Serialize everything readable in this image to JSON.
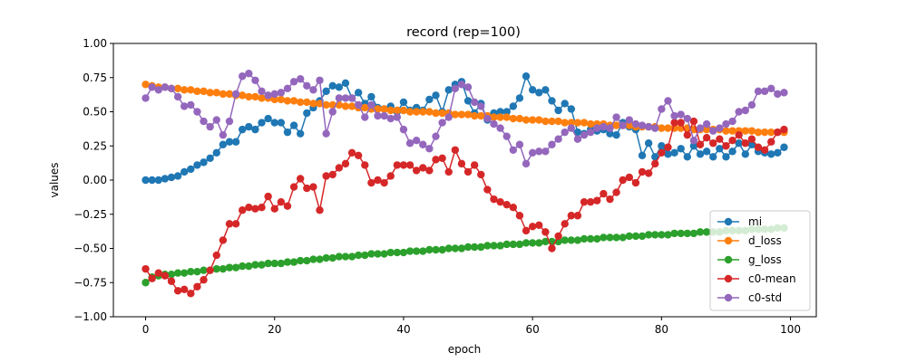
{
  "chart_data": {
    "type": "line",
    "title": "record (rep=100)",
    "xlabel": "epoch",
    "ylabel": "values",
    "xlim": [
      -5,
      104
    ],
    "ylim": [
      -1.0,
      1.0
    ],
    "xticks": [
      0,
      20,
      40,
      60,
      80,
      100
    ],
    "yticks": [
      -1.0,
      -0.75,
      -0.5,
      -0.25,
      0.0,
      0.25,
      0.5,
      0.75,
      1.0
    ],
    "xtick_labels": [
      "0",
      "20",
      "40",
      "60",
      "80",
      "100"
    ],
    "ytick_labels": [
      "−1.00",
      "−0.75",
      "−0.50",
      "−0.25",
      "0.00",
      "0.25",
      "0.50",
      "0.75",
      "1.00"
    ],
    "grid": false,
    "legend_position": "lower right",
    "markers": true,
    "x": [
      0,
      1,
      2,
      3,
      4,
      5,
      6,
      7,
      8,
      9,
      10,
      11,
      12,
      13,
      14,
      15,
      16,
      17,
      18,
      19,
      20,
      21,
      22,
      23,
      24,
      25,
      26,
      27,
      28,
      29,
      30,
      31,
      32,
      33,
      34,
      35,
      36,
      37,
      38,
      39,
      40,
      41,
      42,
      43,
      44,
      45,
      46,
      47,
      48,
      49,
      50,
      51,
      52,
      53,
      54,
      55,
      56,
      57,
      58,
      59,
      60,
      61,
      62,
      63,
      64,
      65,
      66,
      67,
      68,
      69,
      70,
      71,
      72,
      73,
      74,
      75,
      76,
      77,
      78,
      79,
      80,
      81,
      82,
      83,
      84,
      85,
      86,
      87,
      88,
      89,
      90,
      91,
      92,
      93,
      94,
      95,
      96,
      97,
      98,
      99
    ],
    "series": [
      {
        "name": "mi",
        "color": "#1f77b4",
        "values": [
          0.0,
          0.0,
          0.0,
          0.01,
          0.02,
          0.03,
          0.06,
          0.08,
          0.11,
          0.13,
          0.16,
          0.2,
          0.26,
          0.28,
          0.28,
          0.37,
          0.39,
          0.37,
          0.42,
          0.45,
          0.42,
          0.42,
          0.35,
          0.4,
          0.34,
          0.49,
          0.53,
          0.58,
          0.65,
          0.69,
          0.68,
          0.71,
          0.6,
          0.64,
          0.56,
          0.61,
          0.53,
          0.52,
          0.54,
          0.5,
          0.57,
          0.51,
          0.53,
          0.51,
          0.59,
          0.62,
          0.5,
          0.66,
          0.7,
          0.72,
          0.58,
          0.49,
          0.56,
          0.44,
          0.49,
          0.5,
          0.5,
          0.54,
          0.6,
          0.76,
          0.66,
          0.64,
          0.66,
          0.58,
          0.51,
          0.56,
          0.52,
          0.35,
          0.34,
          0.37,
          0.36,
          0.37,
          0.34,
          0.33,
          0.42,
          0.39,
          0.37,
          0.18,
          0.27,
          0.17,
          0.25,
          0.19,
          0.2,
          0.23,
          0.17,
          0.25,
          0.19,
          0.21,
          0.17,
          0.23,
          0.17,
          0.21,
          0.27,
          0.19,
          0.26,
          0.21,
          0.2,
          0.19,
          0.2,
          0.24
        ]
      },
      {
        "name": "d_loss",
        "color": "#ff7f0e",
        "values": [
          0.7,
          0.69,
          0.68,
          0.68,
          0.67,
          0.67,
          0.66,
          0.66,
          0.65,
          0.65,
          0.64,
          0.64,
          0.63,
          0.63,
          0.62,
          0.62,
          0.61,
          0.61,
          0.6,
          0.6,
          0.59,
          0.59,
          0.58,
          0.58,
          0.57,
          0.57,
          0.56,
          0.56,
          0.55,
          0.55,
          0.55,
          0.54,
          0.54,
          0.53,
          0.53,
          0.52,
          0.52,
          0.52,
          0.51,
          0.51,
          0.51,
          0.5,
          0.5,
          0.5,
          0.5,
          0.49,
          0.49,
          0.49,
          0.48,
          0.48,
          0.48,
          0.47,
          0.47,
          0.47,
          0.46,
          0.46,
          0.46,
          0.45,
          0.45,
          0.44,
          0.44,
          0.44,
          0.43,
          0.43,
          0.43,
          0.42,
          0.42,
          0.42,
          0.42,
          0.41,
          0.41,
          0.41,
          0.4,
          0.4,
          0.4,
          0.4,
          0.39,
          0.39,
          0.39,
          0.39,
          0.38,
          0.38,
          0.38,
          0.38,
          0.38,
          0.37,
          0.37,
          0.37,
          0.37,
          0.37,
          0.36,
          0.36,
          0.36,
          0.36,
          0.36,
          0.35,
          0.35,
          0.35,
          0.35,
          0.35
        ]
      },
      {
        "name": "g_loss",
        "color": "#2ca02c",
        "values": [
          -0.75,
          -0.71,
          -0.7,
          -0.69,
          -0.69,
          -0.68,
          -0.68,
          -0.67,
          -0.67,
          -0.66,
          -0.66,
          -0.65,
          -0.65,
          -0.64,
          -0.64,
          -0.63,
          -0.63,
          -0.62,
          -0.62,
          -0.61,
          -0.61,
          -0.61,
          -0.6,
          -0.6,
          -0.59,
          -0.59,
          -0.58,
          -0.58,
          -0.57,
          -0.57,
          -0.56,
          -0.56,
          -0.56,
          -0.55,
          -0.55,
          -0.54,
          -0.54,
          -0.54,
          -0.53,
          -0.53,
          -0.53,
          -0.52,
          -0.52,
          -0.52,
          -0.51,
          -0.51,
          -0.51,
          -0.5,
          -0.5,
          -0.5,
          -0.49,
          -0.49,
          -0.49,
          -0.48,
          -0.48,
          -0.48,
          -0.47,
          -0.47,
          -0.47,
          -0.46,
          -0.46,
          -0.46,
          -0.45,
          -0.45,
          -0.45,
          -0.44,
          -0.44,
          -0.44,
          -0.43,
          -0.43,
          -0.43,
          -0.42,
          -0.42,
          -0.42,
          -0.42,
          -0.41,
          -0.41,
          -0.41,
          -0.4,
          -0.4,
          -0.4,
          -0.4,
          -0.39,
          -0.39,
          -0.39,
          -0.39,
          -0.38,
          -0.38,
          -0.38,
          -0.38,
          -0.37,
          -0.37,
          -0.37,
          -0.37,
          -0.36,
          -0.36,
          -0.36,
          -0.36,
          -0.35,
          -0.35
        ]
      },
      {
        "name": "c0-mean",
        "color": "#d62728",
        "values": [
          -0.65,
          -0.72,
          -0.68,
          -0.7,
          -0.74,
          -0.81,
          -0.8,
          -0.83,
          -0.78,
          -0.73,
          -0.66,
          -0.55,
          -0.44,
          -0.32,
          -0.32,
          -0.22,
          -0.2,
          -0.21,
          -0.2,
          -0.12,
          -0.21,
          -0.16,
          -0.19,
          -0.05,
          0.01,
          -0.06,
          -0.05,
          -0.22,
          0.03,
          0.04,
          0.09,
          0.12,
          0.2,
          0.18,
          0.11,
          -0.02,
          0.0,
          -0.02,
          0.03,
          0.11,
          0.11,
          0.11,
          0.07,
          0.09,
          0.07,
          0.15,
          0.16,
          0.06,
          0.22,
          0.12,
          0.06,
          0.11,
          0.04,
          -0.07,
          -0.14,
          -0.16,
          -0.18,
          -0.2,
          -0.26,
          -0.37,
          -0.34,
          -0.33,
          -0.38,
          -0.5,
          -0.41,
          -0.32,
          -0.26,
          -0.26,
          -0.16,
          -0.16,
          -0.15,
          -0.1,
          -0.14,
          -0.09,
          0.0,
          0.02,
          -0.02,
          0.06,
          0.05,
          0.12,
          0.2,
          0.24,
          0.42,
          0.42,
          0.33,
          0.43,
          0.26,
          0.31,
          0.27,
          0.3,
          0.25,
          0.29,
          0.33,
          0.27,
          0.3,
          0.24,
          0.22,
          0.28,
          0.35,
          0.37
        ]
      },
      {
        "name": "c0-std",
        "color": "#9467bd",
        "values": [
          0.6,
          0.68,
          0.66,
          0.68,
          0.67,
          0.61,
          0.54,
          0.55,
          0.5,
          0.43,
          0.39,
          0.44,
          0.33,
          0.43,
          0.63,
          0.76,
          0.78,
          0.73,
          0.65,
          0.62,
          0.63,
          0.64,
          0.67,
          0.72,
          0.74,
          0.69,
          0.66,
          0.73,
          0.34,
          0.5,
          0.6,
          0.6,
          0.6,
          0.55,
          0.46,
          0.55,
          0.47,
          0.47,
          0.45,
          0.46,
          0.37,
          0.27,
          0.29,
          0.26,
          0.23,
          0.32,
          0.42,
          0.46,
          0.67,
          0.7,
          0.68,
          0.57,
          0.54,
          0.45,
          0.41,
          0.38,
          0.32,
          0.22,
          0.26,
          0.12,
          0.2,
          0.21,
          0.21,
          0.26,
          0.3,
          0.35,
          0.38,
          0.3,
          0.33,
          0.35,
          0.38,
          0.39,
          0.38,
          0.46,
          0.4,
          0.44,
          0.41,
          0.4,
          0.39,
          0.38,
          0.52,
          0.58,
          0.47,
          0.48,
          0.45,
          0.29,
          0.38,
          0.41,
          0.36,
          0.38,
          0.41,
          0.43,
          0.5,
          0.51,
          0.55,
          0.65,
          0.65,
          0.67,
          0.63,
          0.64
        ]
      }
    ]
  }
}
